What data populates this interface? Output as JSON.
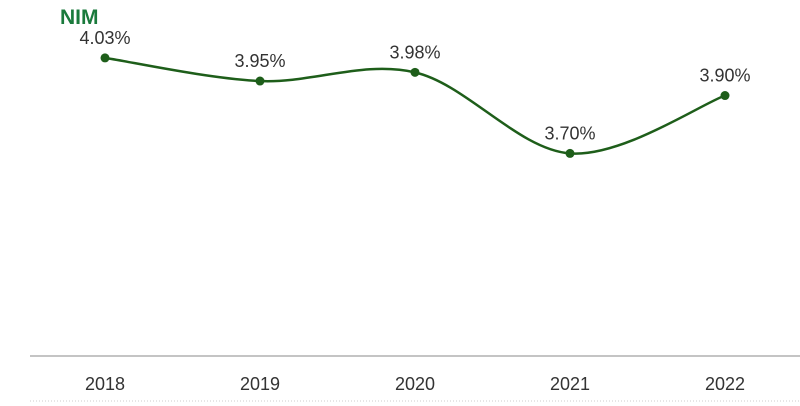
{
  "chart_data": {
    "type": "line",
    "title": "NIM",
    "categories": [
      "2018",
      "2019",
      "2020",
      "2021",
      "2022"
    ],
    "series": [
      {
        "values": [
          4.03,
          3.95,
          3.98,
          3.7,
          3.9
        ]
      }
    ],
    "data_labels": [
      "4.03%",
      "3.95%",
      "3.98%",
      "3.70%",
      "3.90%"
    ],
    "ylim": [
      3.0,
      4.23
    ],
    "grid": false,
    "legend": "none"
  },
  "colors": {
    "title": "#1a7a3c",
    "line": "#1e5e1a",
    "axis": "#b0b0b0",
    "bottom_rule": "#cccccc",
    "text": "#333333"
  }
}
